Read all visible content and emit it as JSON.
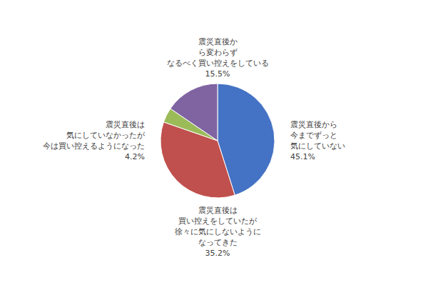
{
  "chart_data": {
    "type": "pie",
    "categories": [
      "震災直後から\n今までずっと\n気にしていない\n45.1%",
      "震災直後は\n買い控えをしていたが\n徐々に気にしないように\nなってきた\n35.2%",
      "震災直後は\n気にしていなかったが\n今は買い控えるようになった\n4.2%",
      "震災直後か\nら変わらず\nなるべく買い控えをしている\n15.5%"
    ],
    "values": [
      45.1,
      35.2,
      4.2,
      15.5
    ],
    "colors": [
      "#4472C4",
      "#C0504D",
      "#9BBB59",
      "#8064A2"
    ]
  }
}
